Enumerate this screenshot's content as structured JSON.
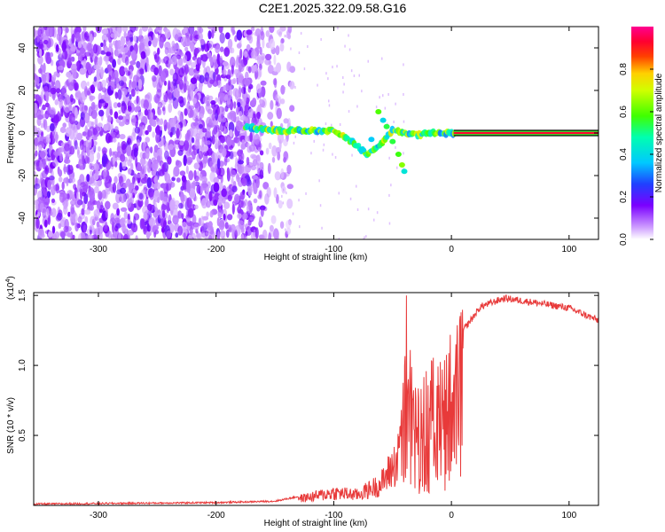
{
  "title": "C2E1.2025.322.09.58.G16",
  "chart_data": [
    {
      "type": "heatmap",
      "name": "spectrogram",
      "xlabel": "Height of straight line (km)",
      "ylabel": "Frequency (Hz)",
      "xlim": [
        -355,
        125
      ],
      "ylim": [
        -50,
        50
      ],
      "xticks": [
        -300,
        -200,
        -100,
        0,
        100
      ],
      "yticks": [
        -40,
        -20,
        0,
        20,
        40
      ],
      "colorbar": {
        "label": "Normalized spectral amplitude",
        "range": [
          0,
          1
        ],
        "ticks": [
          "0.0",
          "0.2",
          "0.4",
          "0.6",
          "0.8"
        ],
        "tick_values": [
          0.0,
          0.2,
          0.4,
          0.6,
          0.8
        ]
      },
      "features": {
        "noise_region_x": [
          -355,
          -160
        ],
        "signal_trace": [
          {
            "x": -175,
            "f": 3
          },
          {
            "x": -160,
            "f": 2
          },
          {
            "x": -140,
            "f": 1
          },
          {
            "x": -120,
            "f": 1
          },
          {
            "x": -100,
            "f": 1
          },
          {
            "x": -90,
            "f": -2
          },
          {
            "x": -80,
            "f": -6
          },
          {
            "x": -72,
            "f": -10
          },
          {
            "x": -60,
            "f": -5
          },
          {
            "x": -50,
            "f": 1
          },
          {
            "x": -40,
            "f": 0
          },
          {
            "x": -30,
            "f": -1
          },
          {
            "x": -20,
            "f": 0
          },
          {
            "x": 0,
            "f": 0
          },
          {
            "x": 125,
            "f": 0
          }
        ]
      }
    },
    {
      "type": "line",
      "name": "snr",
      "xlabel": "Height of straight line (km)",
      "ylabel": "SNR (10 * v/v)",
      "scale_label": "(x10",
      "scale_exp": "4",
      "xlim": [
        -355,
        125
      ],
      "ylim": [
        0,
        1.52
      ],
      "xticks": [
        -300,
        -200,
        -100,
        0,
        100
      ],
      "yticks": [
        0.5,
        1.0,
        1.5
      ],
      "ytick_labels": [
        "0.5",
        "1.0",
        "1.5"
      ],
      "color": "#e83a3a",
      "series_envelope": [
        {
          "x": -355,
          "y": 0.01
        },
        {
          "x": -200,
          "y": 0.02
        },
        {
          "x": -150,
          "y": 0.03
        },
        {
          "x": -120,
          "y": 0.08
        },
        {
          "x": -100,
          "y": 0.12
        },
        {
          "x": -80,
          "y": 0.1
        },
        {
          "x": -60,
          "y": 0.2
        },
        {
          "x": -45,
          "y": 0.45
        },
        {
          "x": -38,
          "y": 1.1
        },
        {
          "x": -30,
          "y": 0.75
        },
        {
          "x": -20,
          "y": 0.85
        },
        {
          "x": -10,
          "y": 0.95
        },
        {
          "x": 0,
          "y": 1.05
        },
        {
          "x": 10,
          "y": 1.25
        },
        {
          "x": 25,
          "y": 1.42
        },
        {
          "x": 45,
          "y": 1.48
        },
        {
          "x": 70,
          "y": 1.45
        },
        {
          "x": 100,
          "y": 1.41
        },
        {
          "x": 125,
          "y": 1.32
        }
      ]
    }
  ]
}
